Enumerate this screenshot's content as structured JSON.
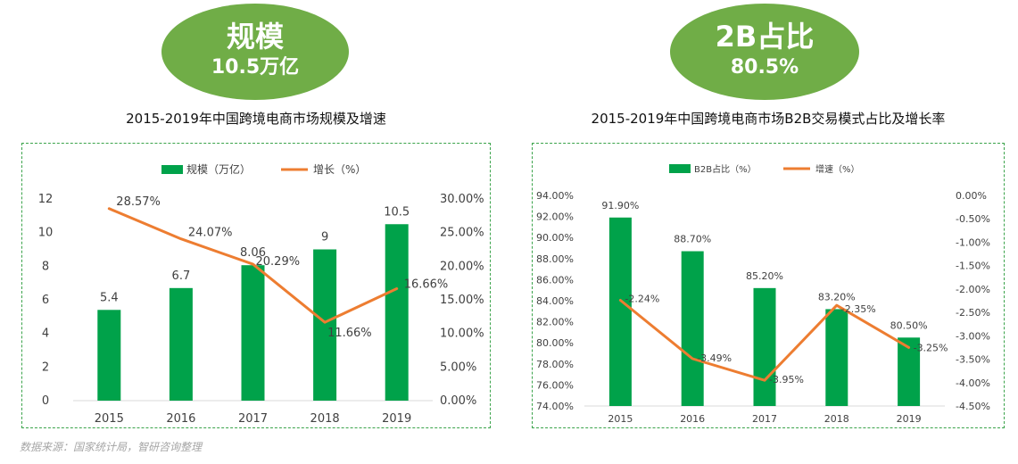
{
  "badges": [
    {
      "title": "规模",
      "value": "10.5万亿"
    },
    {
      "title": "2B占比",
      "value": "80.5%"
    }
  ],
  "source": "数据来源：国家统计局，智研咨询整理",
  "colors": {
    "bar": "#00a24a",
    "line": "#ed7d31",
    "badge": "#70ad47",
    "panel_border": "#3aa34a"
  },
  "chart_data": [
    {
      "type": "bar",
      "title": "2015-2019年中国跨境电商市场规模及增速",
      "categories": [
        "2015",
        "2016",
        "2017",
        "2018",
        "2019"
      ],
      "series": [
        {
          "name": "规模（万亿）",
          "type": "bar",
          "axis": "left",
          "values": [
            5.4,
            6.7,
            8.06,
            9,
            10.5
          ],
          "labels": [
            "5.4",
            "6.7",
            "8.06",
            "9",
            "10.5"
          ]
        },
        {
          "name": "增长（%）",
          "type": "line",
          "axis": "right",
          "values": [
            28.57,
            24.07,
            20.29,
            11.66,
            16.66
          ],
          "labels": [
            "28.57%",
            "24.07%",
            "20.29%",
            "11.66%",
            "16.66%"
          ]
        }
      ],
      "y_left": {
        "min": 0,
        "max": 12,
        "ticks": [
          "0",
          "2",
          "4",
          "6",
          "8",
          "10",
          "12"
        ]
      },
      "y_right": {
        "min": 0,
        "max": 30,
        "ticks": [
          "0.00%",
          "5.00%",
          "10.00%",
          "15.00%",
          "20.00%",
          "25.00%",
          "30.00%"
        ]
      },
      "legend_position": "top"
    },
    {
      "type": "bar",
      "title": "2015-2019年中国跨境电商市场B2B交易模式占比及增长率",
      "categories": [
        "2015",
        "2016",
        "2017",
        "2018",
        "2019"
      ],
      "series": [
        {
          "name": "B2B占比（%）",
          "type": "bar",
          "axis": "left",
          "values": [
            91.9,
            88.7,
            85.2,
            83.2,
            80.5
          ],
          "labels": [
            "91.90%",
            "88.70%",
            "85.20%",
            "83.20%",
            "80.50%"
          ]
        },
        {
          "name": "增速（%）",
          "type": "line",
          "axis": "right",
          "values": [
            -2.24,
            -3.49,
            -3.95,
            -2.35,
            -3.25
          ],
          "labels": [
            "-2.24%",
            "-3.49%",
            "-3.95%",
            "-2.35%",
            "-3.25%"
          ]
        }
      ],
      "y_left": {
        "min": 74,
        "max": 94,
        "ticks": [
          "74.00%",
          "76.00%",
          "78.00%",
          "80.00%",
          "82.00%",
          "84.00%",
          "86.00%",
          "88.00%",
          "90.00%",
          "92.00%",
          "94.00%"
        ]
      },
      "y_right": {
        "min": -4.5,
        "max": 0,
        "ticks": [
          "-4.50%",
          "-4.00%",
          "-3.50%",
          "-3.00%",
          "-2.50%",
          "-2.00%",
          "-1.50%",
          "-1.00%",
          "-0.50%",
          "0.00%"
        ]
      },
      "legend_position": "top"
    }
  ]
}
